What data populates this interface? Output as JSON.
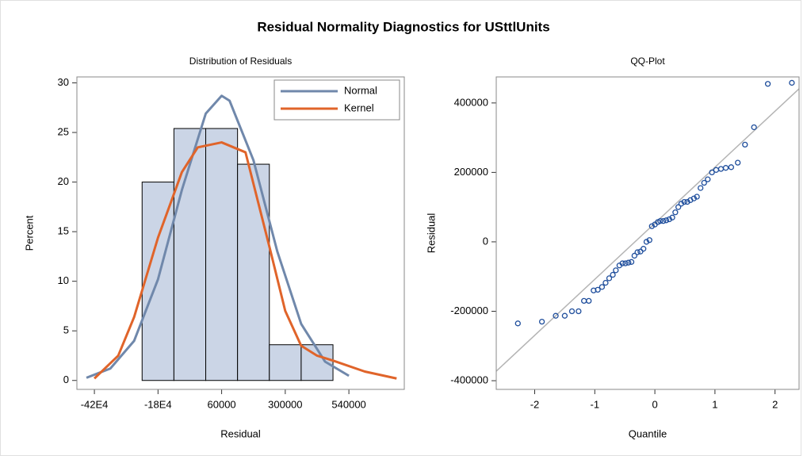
{
  "title": "Residual Normality Diagnostics for USttlUnits",
  "chart_data": [
    {
      "type": "histogram",
      "title": "Distribution of Residuals",
      "xlabel": "Residual",
      "ylabel": "Percent",
      "bins": [
        -240000,
        -120000,
        0,
        120000,
        240000,
        360000,
        480000
      ],
      "values": [
        20,
        25.4,
        25.4,
        21.8,
        3.6,
        3.6
      ],
      "color": "#cbd5e6",
      "edgecolor": "#000000",
      "xlim": [
        -486000,
        749000
      ],
      "ylim": [
        -0.9,
        30.6
      ],
      "xticks": [
        {
          "value": -420000,
          "label": "-42E4"
        },
        {
          "value": -180000,
          "label": "-18E4"
        },
        60000,
        300000,
        540000
      ],
      "yticks": [
        0,
        5,
        10,
        15,
        20,
        25,
        30
      ],
      "legend": "upper right",
      "series": [
        {
          "name": "Normal",
          "color": "#7088ab",
          "x": [
            -450000,
            -360000,
            -270000,
            -180000,
            -90000,
            0,
            60000,
            90000,
            180000,
            270000,
            360000,
            450000,
            540000
          ],
          "values": [
            0.27,
            1.2,
            4.0,
            10.2,
            19.2,
            26.9,
            28.7,
            28.2,
            22.2,
            13.0,
            5.7,
            1.9,
            0.47
          ]
        },
        {
          "name": "Kernel",
          "color": "#e0642a",
          "x": [
            -420000,
            -330000,
            -270000,
            -180000,
            -90000,
            -30000,
            60000,
            150000,
            240000,
            300000,
            360000,
            420000,
            480000,
            600000,
            720000
          ],
          "values": [
            0.2,
            2.5,
            6.4,
            14.4,
            21,
            23.5,
            24,
            23,
            13.5,
            7,
            3.5,
            2.5,
            2.0,
            0.9,
            0.2
          ]
        }
      ]
    },
    {
      "type": "scatter",
      "title": "QQ-Plot",
      "xlabel": "Quantile",
      "ylabel": "Residual",
      "color": "#1f4e9c",
      "xlim": [
        -2.64,
        2.4
      ],
      "ylim": [
        -425000,
        475000
      ],
      "xticks": [
        -2,
        -1,
        0,
        1,
        2
      ],
      "yticks": [
        -400000,
        -200000,
        0,
        200000,
        400000
      ],
      "reference_line": {
        "intercept": 53500,
        "slope": 161400,
        "color": "#b4b4b4"
      },
      "x": [
        -2.28,
        -1.88,
        -1.65,
        -1.5,
        -1.38,
        -1.27,
        -1.18,
        -1.1,
        -1.02,
        -0.95,
        -0.88,
        -0.82,
        -0.76,
        -0.7,
        -0.65,
        -0.59,
        -0.54,
        -0.49,
        -0.44,
        -0.39,
        -0.34,
        -0.29,
        -0.24,
        -0.19,
        -0.14,
        -0.09,
        -0.05,
        0,
        0.05,
        0.09,
        0.14,
        0.19,
        0.24,
        0.29,
        0.34,
        0.39,
        0.44,
        0.49,
        0.54,
        0.59,
        0.65,
        0.7,
        0.76,
        0.82,
        0.88,
        0.95,
        1.02,
        1.1,
        1.18,
        1.27,
        1.38,
        1.5,
        1.65,
        1.88,
        2.28
      ],
      "values": [
        -235000,
        -230000,
        -213000,
        -213000,
        -200000,
        -200000,
        -170000,
        -170000,
        -140000,
        -138000,
        -130000,
        -118000,
        -105000,
        -95000,
        -82000,
        -68000,
        -62000,
        -62000,
        -60000,
        -58000,
        -40000,
        -30000,
        -28000,
        -20000,
        0,
        5000,
        45000,
        50000,
        57000,
        60000,
        60000,
        62000,
        65000,
        70000,
        85000,
        100000,
        110000,
        115000,
        115000,
        120000,
        125000,
        130000,
        155000,
        170000,
        180000,
        200000,
        207000,
        210000,
        213000,
        215000,
        228000,
        280000,
        330000,
        455000,
        458000
      ]
    }
  ]
}
